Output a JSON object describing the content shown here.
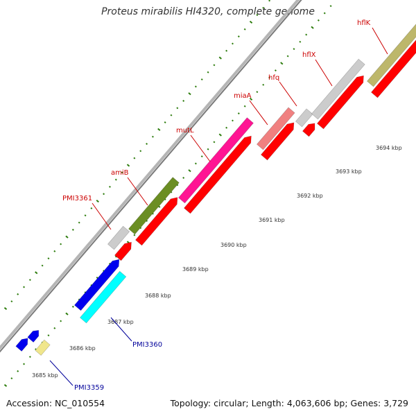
{
  "title": "Proteus mirabilis HI4320, complete genome",
  "footer": {
    "accession": "Accession: NC_010554",
    "summary": "Topology: circular; Length: 4,063,606 bp; Genes: 3,729"
  },
  "colors": {
    "backbone": "#909090",
    "tick": "#2e7d0e",
    "label_red": "#cc0000",
    "label_blue": "#00009a",
    "cds_red": "#ff0000"
  },
  "scale_labels": [
    "3685 kbp",
    "3686 kbp",
    "3687 kbp",
    "3688 kbp",
    "3689 kbp",
    "3690 kbp",
    "3691 kbp",
    "3692 kbp",
    "3693 kbp",
    "3694 kbp"
  ],
  "genes_forward": [
    {
      "name": "PMI3361",
      "color": "#cccccc"
    },
    {
      "name": "amiB",
      "color": "#6b8e23"
    },
    {
      "name": "mutL",
      "color": "#ff1493"
    },
    {
      "name": "miaA",
      "color": "#f08080"
    },
    {
      "name": "hfq",
      "color": "#cccccc"
    },
    {
      "name": "hflX",
      "color": "#cccccc"
    },
    {
      "name": "hflK",
      "color": "#bdb76b"
    }
  ],
  "genes_reverse": [
    {
      "name": "PMI3360",
      "color": "#00ffff"
    },
    {
      "name": "PMI3359",
      "color": "#f0e68c"
    }
  ]
}
